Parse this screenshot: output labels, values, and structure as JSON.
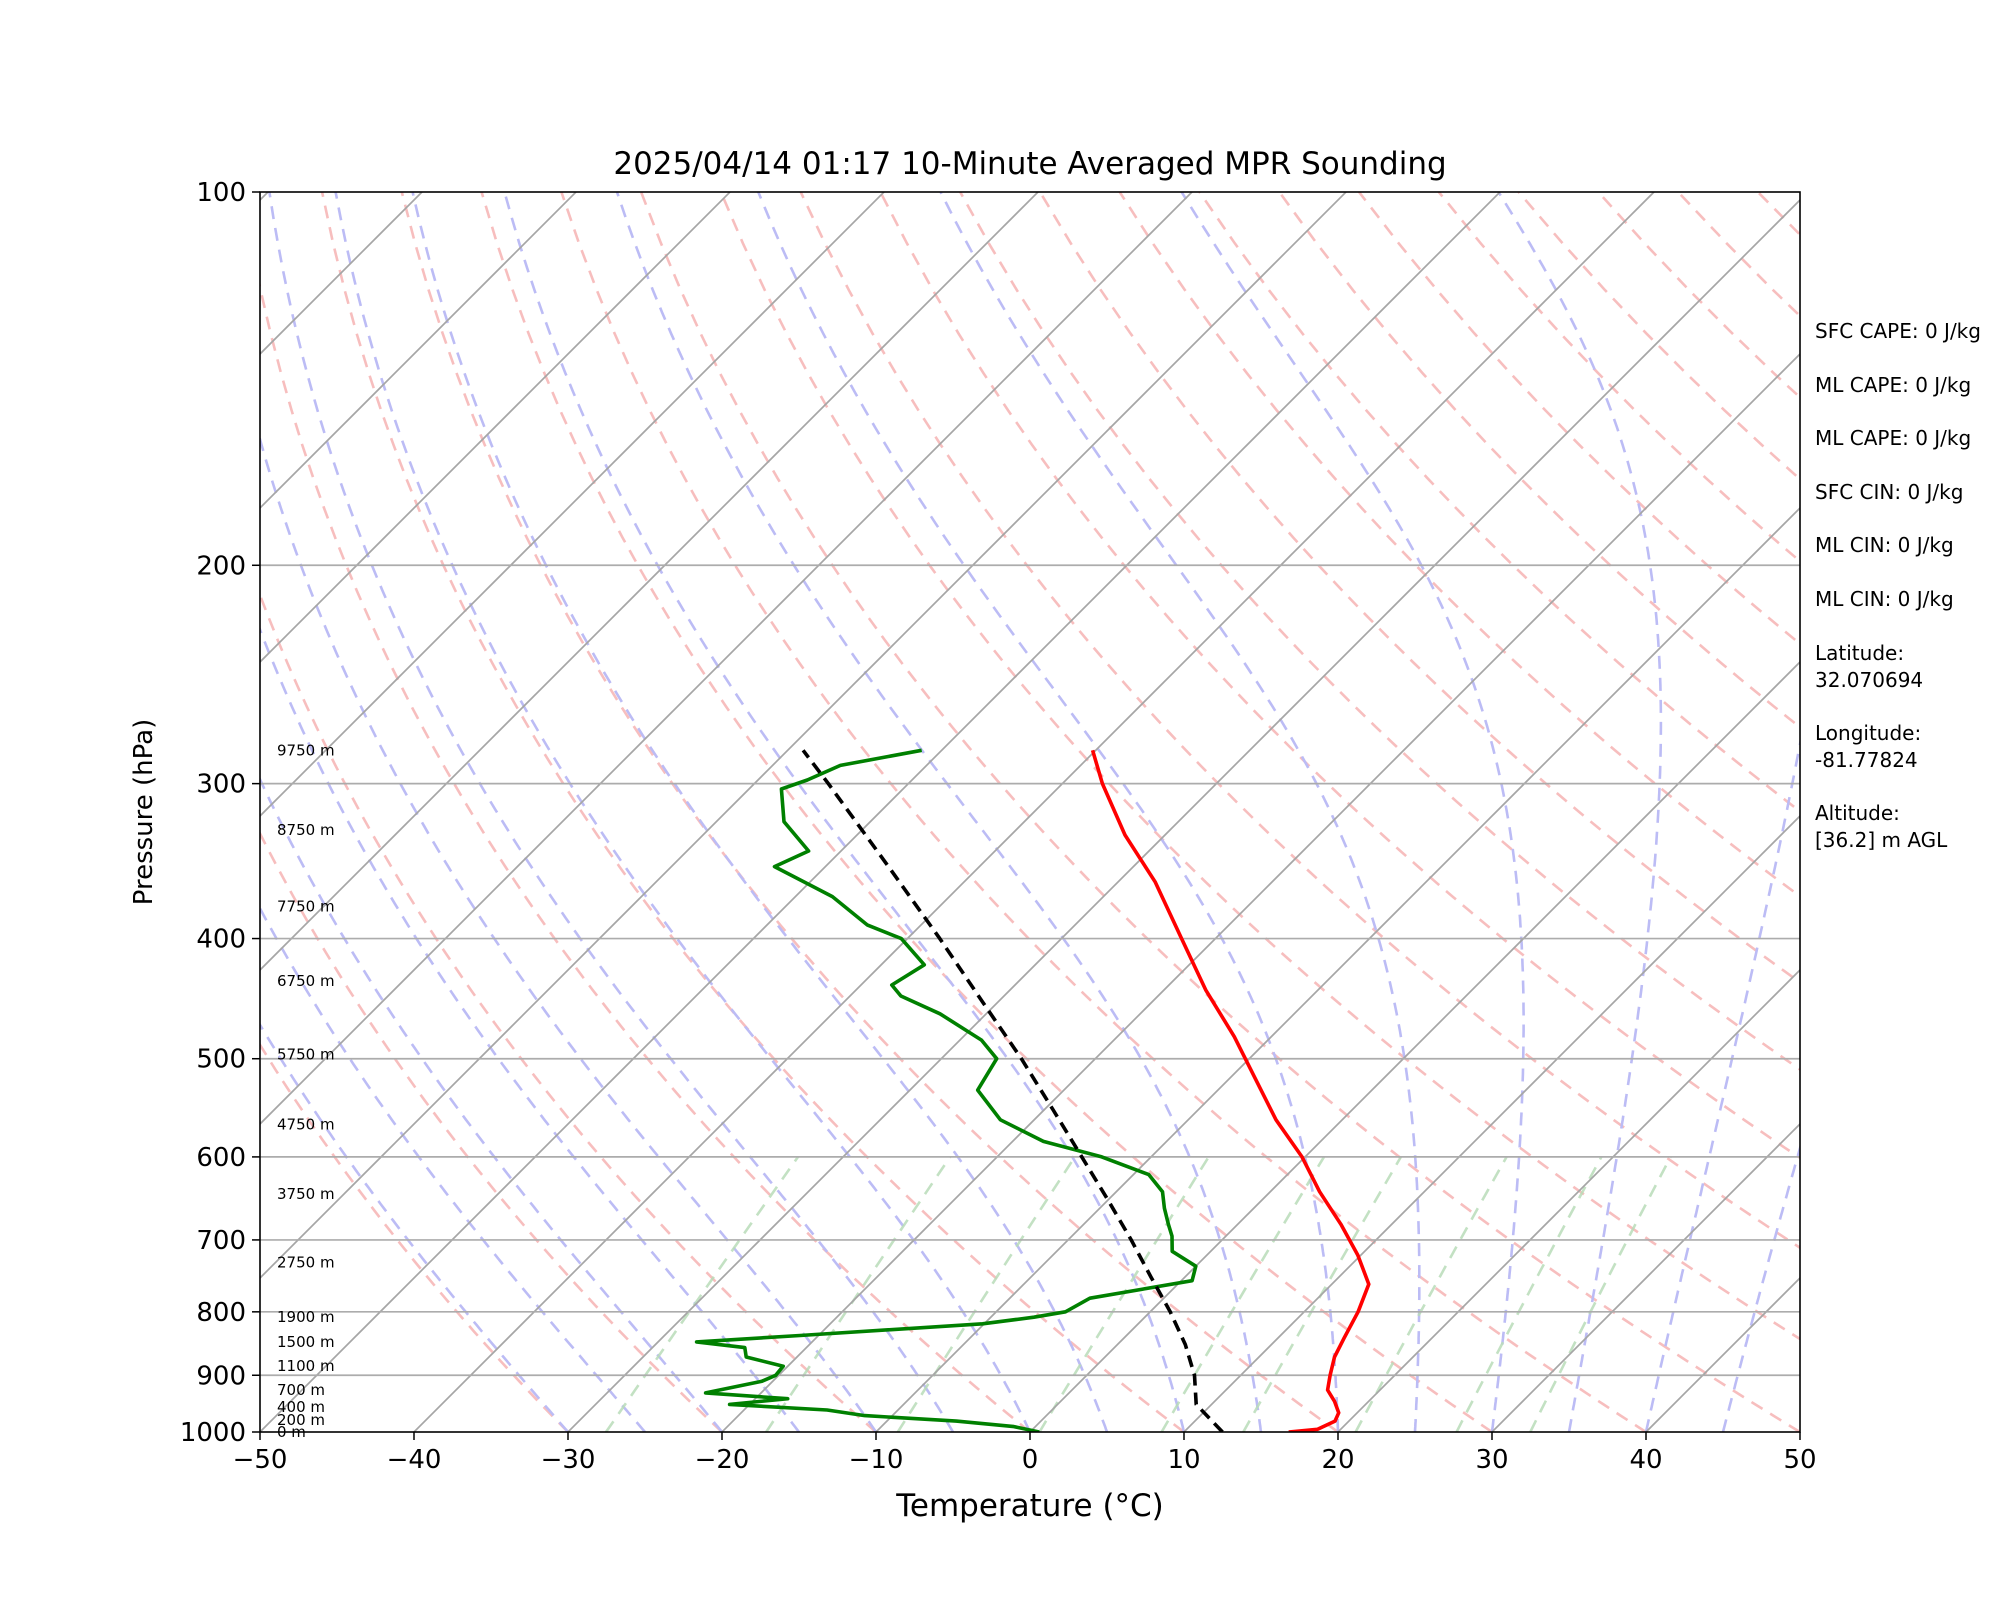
{
  "chart_data": {
    "type": "line",
    "title": "2025/04/14 01:17 10-Minute Averaged MPR Sounding",
    "xlabel": "Temperature (°C)",
    "ylabel": "Pressure (hPa)",
    "xlim": [
      -50,
      50
    ],
    "ylim": [
      1000,
      100
    ],
    "yscale": "log",
    "grid": true,
    "x_ticks": [
      "−50",
      "−40",
      "−30",
      "−20",
      "−10",
      "0",
      "10",
      "20",
      "30",
      "40",
      "50"
    ],
    "y_ticks": [
      "100",
      "200",
      "300",
      "400",
      "500",
      "600",
      "700",
      "800",
      "900",
      "1000"
    ],
    "height_labels": [
      {
        "p": 1000,
        "label": "0 m"
      },
      {
        "p": 978,
        "label": "200 m"
      },
      {
        "p": 955,
        "label": "400 m"
      },
      {
        "p": 925,
        "label": "700 m"
      },
      {
        "p": 885,
        "label": "1100 m"
      },
      {
        "p": 846,
        "label": "1500 m"
      },
      {
        "p": 808,
        "label": "1900 m"
      },
      {
        "p": 730,
        "label": "2750 m"
      },
      {
        "p": 643,
        "label": "3750 m"
      },
      {
        "p": 565,
        "label": "4750 m"
      },
      {
        "p": 496,
        "label": "5750 m"
      },
      {
        "p": 433,
        "label": "6750 m"
      },
      {
        "p": 377,
        "label": "7750 m"
      },
      {
        "p": 327,
        "label": "8750 m"
      },
      {
        "p": 282,
        "label": "9750 m"
      }
    ],
    "series": [
      {
        "kind": "temperature",
        "color": "#ff0000",
        "points": [
          [
            1000,
            16.8
          ],
          [
            995,
            18.5
          ],
          [
            980,
            19.1
          ],
          [
            965,
            18.8
          ],
          [
            945,
            17.8
          ],
          [
            925,
            16.6
          ],
          [
            900,
            15.8
          ],
          [
            870,
            14.9
          ],
          [
            840,
            14.3
          ],
          [
            800,
            13.5
          ],
          [
            760,
            12.4
          ],
          [
            720,
            9.8
          ],
          [
            680,
            6.7
          ],
          [
            640,
            3.2
          ],
          [
            600,
            -0.2
          ],
          [
            560,
            -4.3
          ],
          [
            520,
            -8.2
          ],
          [
            480,
            -12.4
          ],
          [
            440,
            -17.3
          ],
          [
            400,
            -22.2
          ],
          [
            360,
            -27.6
          ],
          [
            330,
            -32.6
          ],
          [
            300,
            -37.4
          ],
          [
            282,
            -40.2
          ]
        ]
      },
      {
        "kind": "dewpoint",
        "color": "#008000",
        "points": [
          [
            1000,
            0.6
          ],
          [
            990,
            -1.4
          ],
          [
            980,
            -5.5
          ],
          [
            970,
            -11.8
          ],
          [
            960,
            -14.6
          ],
          [
            950,
            -21.3
          ],
          [
            940,
            -17.9
          ],
          [
            930,
            -23.6
          ],
          [
            910,
            -20.7
          ],
          [
            900,
            -20.2
          ],
          [
            885,
            -20.3
          ],
          [
            870,
            -23.3
          ],
          [
            855,
            -24.0
          ],
          [
            846,
            -27.5
          ],
          [
            836,
            -21.2
          ],
          [
            818,
            -10.1
          ],
          [
            808,
            -7.2
          ],
          [
            800,
            -5.5
          ],
          [
            780,
            -4.8
          ],
          [
            755,
            0.7
          ],
          [
            735,
            0.0
          ],
          [
            715,
            -2.5
          ],
          [
            695,
            -3.5
          ],
          [
            680,
            -4.5
          ],
          [
            660,
            -5.8
          ],
          [
            640,
            -7.0
          ],
          [
            620,
            -9.0
          ],
          [
            600,
            -13.2
          ],
          [
            583,
            -18.0
          ],
          [
            560,
            -22.2
          ],
          [
            530,
            -25.6
          ],
          [
            500,
            -26.4
          ],
          [
            483,
            -28.6
          ],
          [
            460,
            -33.0
          ],
          [
            445,
            -36.7
          ],
          [
            436,
            -38.0
          ],
          [
            420,
            -37.2
          ],
          [
            400,
            -40.4
          ],
          [
            390,
            -43.5
          ],
          [
            370,
            -47.6
          ],
          [
            350,
            -53.3
          ],
          [
            340,
            -52.1
          ],
          [
            322,
            -55.6
          ],
          [
            303,
            -57.9
          ],
          [
            298,
            -56.8
          ],
          [
            290,
            -55.6
          ],
          [
            282,
            -51.3
          ]
        ]
      },
      {
        "kind": "parcel",
        "color": "#000000",
        "style": "dashed",
        "points": [
          [
            1000,
            12.5
          ],
          [
            950,
            9.0
          ],
          [
            900,
            7.0
          ],
          [
            850,
            4.4
          ],
          [
            800,
            1.3
          ],
          [
            750,
            -2.2
          ],
          [
            700,
            -5.9
          ],
          [
            650,
            -10.0
          ],
          [
            600,
            -14.5
          ],
          [
            550,
            -19.4
          ],
          [
            500,
            -24.8
          ],
          [
            450,
            -31.0
          ],
          [
            400,
            -37.9
          ],
          [
            350,
            -45.9
          ],
          [
            300,
            -55.2
          ],
          [
            282,
            -59.0
          ]
        ]
      }
    ]
  },
  "info": {
    "sfc_cape": "SFC CAPE: 0 J/kg",
    "ml_cape_1": "ML CAPE: 0 J/kg",
    "ml_cape_2": "ML CAPE: 0 J/kg",
    "sfc_cin": "SFC CIN: 0 J/kg",
    "ml_cin_1": "ML CIN: 0 J/kg",
    "ml_cin_2": "ML CIN: 0 J/kg",
    "latitude": "Latitude:\n32.070694",
    "longitude": "Longitude:\n-81.77824",
    "altitude": "Altitude:\n[36.2] m AGL"
  }
}
